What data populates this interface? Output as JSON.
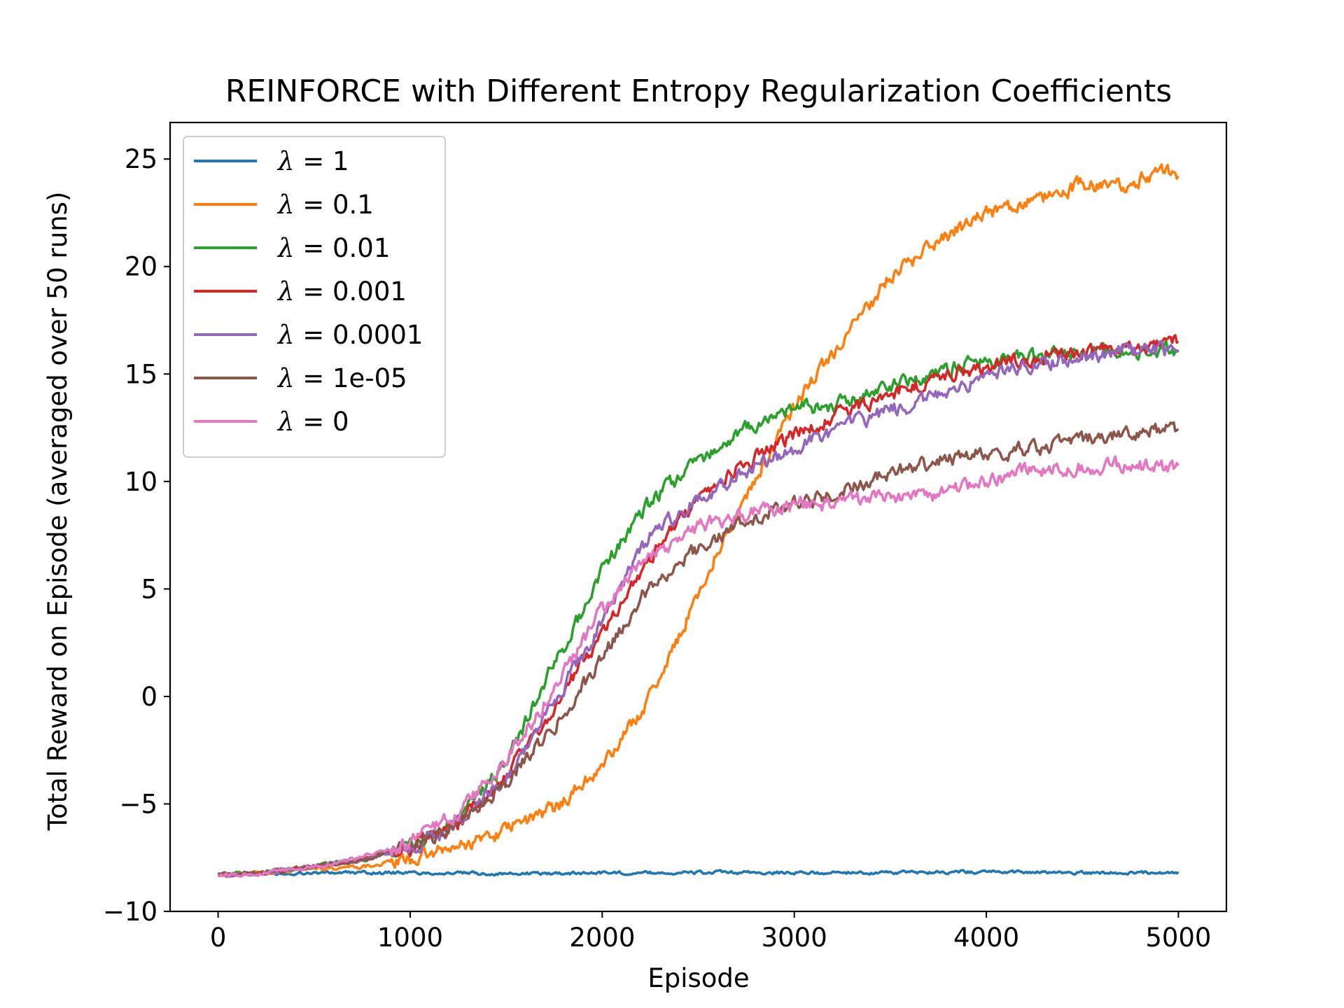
{
  "chart_data": {
    "type": "line",
    "title": "REINFORCE with Different Entropy Regularization Coefficients",
    "xlabel": "Episode",
    "ylabel": "Total Reward on Episode (averaged over 50 runs)",
    "xlim": [
      -250,
      5250
    ],
    "ylim": [
      -10,
      26.7
    ],
    "xticks": [
      0,
      1000,
      2000,
      3000,
      4000,
      5000
    ],
    "yticks": [
      -10,
      -5,
      0,
      5,
      10,
      15,
      20,
      25
    ],
    "xtick_labels": [
      "0",
      "1000",
      "2000",
      "3000",
      "4000",
      "5000"
    ],
    "ytick_labels": [
      "−10",
      "−5",
      "0",
      "5",
      "10",
      "15",
      "20",
      "25"
    ],
    "grid": false,
    "legend_position": "upper-left",
    "lambda_symbol": "λ",
    "series": [
      {
        "name": "λ = 1",
        "lambda_value": "1",
        "color": "#1f77b4",
        "x": [
          0,
          500,
          1000,
          1500,
          2000,
          2500,
          3000,
          3500,
          4000,
          4500,
          5000
        ],
        "y": [
          -8.3,
          -8.2,
          -8.2,
          -8.25,
          -8.2,
          -8.2,
          -8.2,
          -8.2,
          -8.15,
          -8.2,
          -8.2
        ]
      },
      {
        "name": "λ = 0.1",
        "lambda_value": "0.1",
        "color": "#ff7f0e",
        "x": [
          0,
          250,
          500,
          750,
          1000,
          1250,
          1500,
          1750,
          2000,
          2100,
          2250,
          2400,
          2500,
          2600,
          2750,
          3000,
          3250,
          3500,
          3750,
          4000,
          4250,
          4500,
          4750,
          4900,
          5000
        ],
        "y": [
          -8.3,
          -8.2,
          -8.0,
          -7.9,
          -7.6,
          -7.0,
          -6.2,
          -5.2,
          -3.3,
          -2.0,
          0.0,
          2.8,
          4.8,
          6.8,
          9.2,
          13.5,
          16.5,
          19.5,
          21.2,
          22.5,
          23.0,
          23.8,
          23.8,
          24.5,
          24.4
        ]
      },
      {
        "name": "λ = 0.01",
        "lambda_value": "0.01",
        "color": "#2ca02c",
        "x": [
          0,
          250,
          500,
          750,
          1000,
          1250,
          1500,
          1600,
          1750,
          1900,
          2000,
          2250,
          2500,
          2750,
          3000,
          3250,
          3500,
          3750,
          4000,
          4250,
          4500,
          4750,
          5000
        ],
        "y": [
          -8.3,
          -8.2,
          -7.9,
          -7.6,
          -7.0,
          -5.8,
          -3.0,
          -1.2,
          1.5,
          4.0,
          6.0,
          9.0,
          11.0,
          12.4,
          13.4,
          13.6,
          14.5,
          15.1,
          15.6,
          15.8,
          16.0,
          16.0,
          16.2
        ]
      },
      {
        "name": "λ = 0.001",
        "lambda_value": "0.001",
        "color": "#d62728",
        "x": [
          0,
          250,
          500,
          750,
          1000,
          1250,
          1500,
          1750,
          2000,
          2250,
          2500,
          2750,
          3000,
          3250,
          3500,
          3750,
          4000,
          4250,
          4500,
          4750,
          5000
        ],
        "y": [
          -8.3,
          -8.2,
          -7.9,
          -7.6,
          -7.0,
          -5.9,
          -3.8,
          -0.5,
          3.0,
          6.5,
          9.2,
          10.9,
          12.2,
          13.2,
          14.0,
          14.8,
          15.3,
          15.8,
          16.1,
          16.2,
          16.5
        ]
      },
      {
        "name": "λ = 0.0001",
        "lambda_value": "0.0001",
        "color": "#9467bd",
        "x": [
          0,
          250,
          500,
          750,
          1000,
          1250,
          1500,
          1750,
          2000,
          2250,
          2500,
          2750,
          3000,
          3250,
          3500,
          3750,
          4000,
          4250,
          4500,
          4750,
          5000
        ],
        "y": [
          -8.3,
          -8.2,
          -7.9,
          -7.6,
          -7.0,
          -5.9,
          -3.8,
          -0.3,
          3.5,
          7.5,
          9.2,
          10.5,
          11.5,
          12.5,
          13.3,
          14.0,
          14.8,
          15.4,
          15.8,
          16.0,
          16.1
        ]
      },
      {
        "name": "λ = 1e-05",
        "lambda_value": "1e-05",
        "color": "#8c564b",
        "x": [
          0,
          250,
          500,
          750,
          1000,
          1250,
          1500,
          1750,
          2000,
          2250,
          2500,
          2750,
          3000,
          3250,
          3500,
          3750,
          4000,
          4250,
          4500,
          4750,
          5000
        ],
        "y": [
          -8.3,
          -8.2,
          -7.9,
          -7.6,
          -7.0,
          -5.9,
          -4.0,
          -1.4,
          1.8,
          5.2,
          6.9,
          8.2,
          8.9,
          9.6,
          10.4,
          11.0,
          11.3,
          11.5,
          11.9,
          12.3,
          12.4
        ]
      },
      {
        "name": "λ = 0",
        "lambda_value": "0",
        "color": "#e377c2",
        "x": [
          0,
          250,
          500,
          750,
          1000,
          1250,
          1500,
          1750,
          2000,
          2250,
          2500,
          2750,
          3000,
          3250,
          3500,
          3750,
          4000,
          4250,
          4500,
          4750,
          5000
        ],
        "y": [
          -8.3,
          -8.2,
          -7.9,
          -7.5,
          -6.8,
          -5.4,
          -3.0,
          0.4,
          4.0,
          6.5,
          7.9,
          8.5,
          8.9,
          9.0,
          9.3,
          9.3,
          10.0,
          10.5,
          10.7,
          10.8,
          10.5
        ]
      }
    ]
  }
}
